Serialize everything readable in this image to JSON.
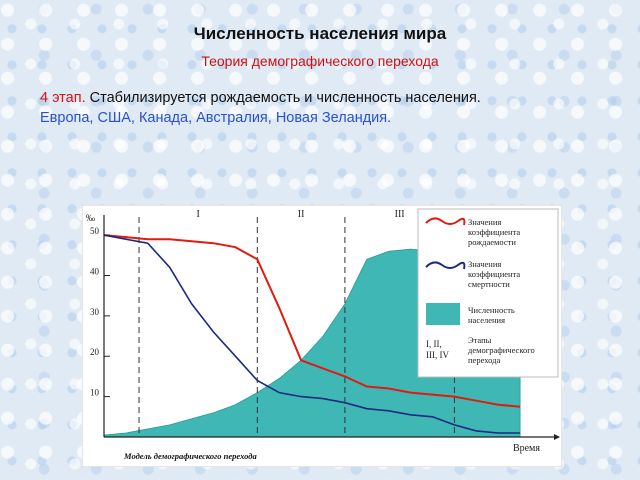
{
  "slide": {
    "title": "Численность населения мира",
    "subtitle": "Теория демографического перехода",
    "stage_label": "4 этап.",
    "stage_text": " Стабилизируется рождаемость и численность населения.",
    "countries": "Европа, США, Канада, Австралия, Новая Зеландия."
  },
  "colors": {
    "birth": "#e01b10",
    "death": "#1a2a80",
    "population": "#3fb8b5",
    "chart_bg": "#ffffff"
  },
  "chart_data": {
    "type": "line",
    "title": "Модель демографического перехода",
    "ylabel": "‰",
    "xlabel": "Время",
    "ylim": [
      0,
      53
    ],
    "y_ticks": [
      10,
      20,
      30,
      40,
      50
    ],
    "stages": [
      "I",
      "II",
      "III",
      "IV"
    ],
    "stage_bounds": [
      0.08,
      0.35,
      0.55,
      0.8
    ],
    "grid": false,
    "legend_position": "right",
    "legend": [
      {
        "key": "birth",
        "text": "Значения коэффициента рождаемости"
      },
      {
        "key": "death",
        "text": "Значения коэффициента смертности"
      },
      {
        "key": "population",
        "text": "Численность населения"
      },
      {
        "key": "stages",
        "symbol": "I, II, III, IV",
        "text": "Этапы демографического перехода"
      }
    ],
    "x": [
      0,
      0.05,
      0.1,
      0.15,
      0.2,
      0.25,
      0.3,
      0.35,
      0.4,
      0.45,
      0.5,
      0.55,
      0.6,
      0.65,
      0.7,
      0.75,
      0.8,
      0.85,
      0.9,
      0.95
    ],
    "series": [
      {
        "name": "Значения коэффициента рождаемости",
        "key": "birth",
        "values": [
          50,
          49.5,
          49,
          49,
          48.5,
          48,
          47,
          44,
          32,
          19,
          17,
          15,
          12.5,
          12,
          11,
          10.5,
          10,
          9,
          8,
          7.5
        ]
      },
      {
        "name": "Значения коэффициента смертности",
        "key": "death",
        "values": [
          50,
          49,
          48,
          42,
          33,
          26,
          20,
          14,
          11,
          10,
          9.5,
          8.5,
          7,
          6.5,
          5.5,
          5,
          3,
          1.5,
          1,
          1
        ]
      },
      {
        "name": "Численность населения",
        "key": "population",
        "values": [
          0.5,
          1,
          2,
          3,
          4.5,
          6,
          8,
          11,
          14.5,
          19,
          25,
          33,
          44,
          46,
          46.5,
          46,
          45.5,
          45,
          45,
          45
        ]
      }
    ]
  }
}
